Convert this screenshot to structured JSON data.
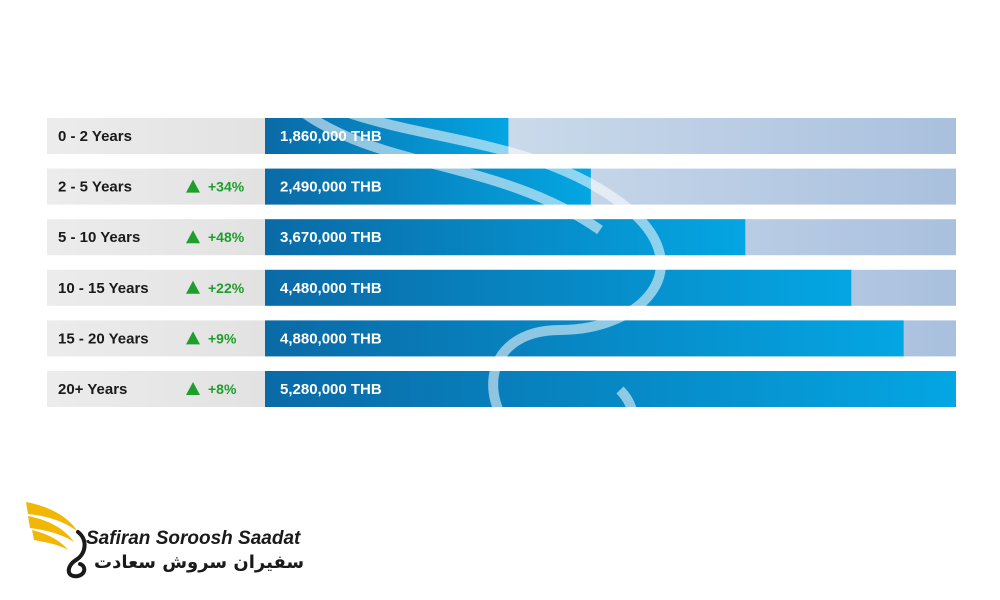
{
  "chart_data": {
    "type": "bar",
    "orientation": "horizontal",
    "categories": [
      "0 - 2 Years",
      "2 - 5 Years",
      "5 - 10 Years",
      "10 - 15 Years",
      "15 - 20 Years",
      "20+ Years"
    ],
    "values": [
      1860000,
      2490000,
      3670000,
      4480000,
      4880000,
      5280000
    ],
    "value_labels": [
      "1,860,000 THB",
      "2,490,000 THB",
      "3,670,000 THB",
      "4,480,000 THB",
      "4,880,000 THB",
      "5,280,000 THB"
    ],
    "changes": [
      "",
      "+34%",
      "+48%",
      "+22%",
      "+9%",
      "+8%"
    ],
    "xlim": [
      0,
      5280000
    ],
    "title": "",
    "xlabel": "",
    "ylabel": "",
    "grid": false,
    "legend": "none",
    "colors": {
      "bar_dark": "#0a6aa6",
      "bar_light": "#04a6e3",
      "track_left": "#dde8f2",
      "track_right": "#a9c0de",
      "label_bg": "#e6e6e6",
      "up_arrow": "#1e9e2a"
    }
  },
  "brand": {
    "name_en": "Safiran Soroosh Saadat",
    "name_fa": "سفیران سروش سعادت",
    "logo_icon": "golden-wing-swan-logo",
    "colors": {
      "wing": "#f2b705",
      "text": "#1a1a1a"
    }
  }
}
